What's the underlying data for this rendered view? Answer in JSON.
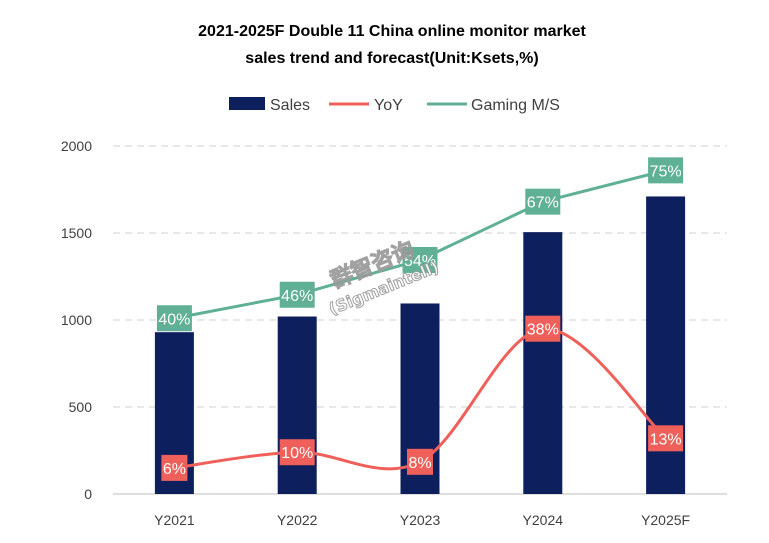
{
  "chart_data": {
    "type": "bar",
    "title_lines": [
      "2021-2025F Double 11 China online monitor market",
      "sales trend and forecast(Unit:Ksets,%)"
    ],
    "categories": [
      "Y2021",
      "Y2022",
      "Y2023",
      "Y2024",
      "Y2025F"
    ],
    "series": [
      {
        "name": "Sales",
        "type": "bar",
        "color": "#0d1f5c",
        "values": [
          930,
          1020,
          1095,
          1505,
          1710
        ]
      },
      {
        "name": "YoY",
        "type": "line",
        "smooth": true,
        "color": "#f0605a",
        "values": [
          6,
          10,
          8,
          38,
          13
        ],
        "labels": [
          "6%",
          "10%",
          "8%",
          "38%",
          "13%"
        ],
        "label_values": [
          150,
          240,
          185,
          950,
          320
        ]
      },
      {
        "name": "Gaming M/S",
        "type": "line",
        "color": "#5fb095",
        "values": [
          40,
          46,
          54,
          67,
          75
        ],
        "labels": [
          "40%",
          "46%",
          "54%",
          "67%",
          "75%"
        ],
        "label_values": [
          1010,
          1145,
          1345,
          1680,
          1860
        ]
      }
    ],
    "y_ticks": [
      0,
      500,
      1000,
      1500,
      2000
    ],
    "ylim": [
      0,
      2000
    ],
    "grid": true,
    "legend_position": "top",
    "watermark": {
      "line1": "群智咨询",
      "line2": "(Sigmaintell)"
    }
  }
}
